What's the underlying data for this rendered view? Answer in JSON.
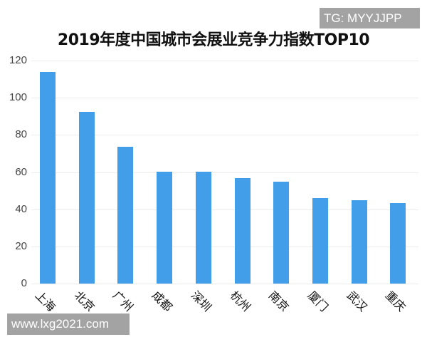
{
  "watermarks": {
    "top": "TG: MYYJJPP",
    "bottom": "www.lxg2021.com"
  },
  "chart_data": {
    "type": "bar",
    "title": "2019年度中国城市会展业竞争力指数TOP10",
    "xlabel": "",
    "ylabel": "",
    "ylim": [
      0,
      120
    ],
    "yticks": [
      "0",
      "20",
      "40",
      "60",
      "80",
      "100",
      "120"
    ],
    "grid": true,
    "legend": null,
    "color": "#439ee9",
    "categories": [
      "上海",
      "北京",
      "广州",
      "成都",
      "深圳",
      "杭州",
      "南京",
      "厦门",
      "武汉",
      "重庆"
    ],
    "values": [
      114,
      92.3,
      73.6,
      60.2,
      60.2,
      56.7,
      54.8,
      46,
      44.8,
      43.3
    ]
  }
}
